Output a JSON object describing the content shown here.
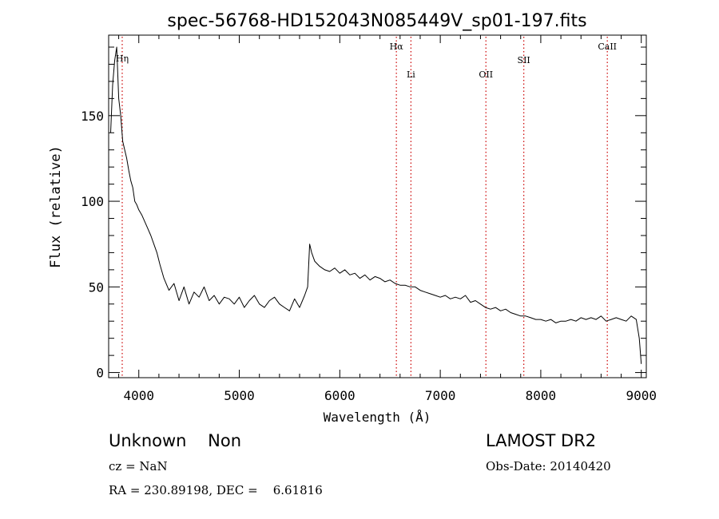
{
  "chart_data": {
    "type": "line",
    "title": "spec-56768-HD152043N085449V_sp01-197.fits",
    "xlabel": "Wavelength (Å)",
    "ylabel": "Flux (relative)",
    "xlim": [
      3700,
      9050
    ],
    "ylim": [
      -3,
      197
    ],
    "xticks": [
      4000,
      5000,
      6000,
      7000,
      8000,
      9000
    ],
    "yticks": [
      0,
      50,
      100,
      150
    ],
    "grid": false,
    "line_color": "#000000",
    "marker_color": "#cc0000",
    "lines": [
      {
        "label": "Hη",
        "wavelength": 3835
      },
      {
        "label": "Hα",
        "wavelength": 6563
      },
      {
        "label": "Li",
        "wavelength": 6708
      },
      {
        "label": "OII",
        "wavelength": 7454
      },
      {
        "label": "SII",
        "wavelength": 7831
      },
      {
        "label": "CaII",
        "wavelength": 8662
      }
    ],
    "series": [
      {
        "x": [
          3720,
          3740,
          3760,
          3780,
          3800,
          3820,
          3840,
          3860,
          3880,
          3900,
          3920,
          3940,
          3960,
          3980,
          4000,
          4030,
          4060,
          4090,
          4120,
          4150,
          4180,
          4210,
          4250,
          4300,
          4350,
          4400,
          4450,
          4500,
          4550,
          4600,
          4650,
          4700,
          4750,
          4800,
          4850,
          4900,
          4950,
          5000,
          5050,
          5100,
          5150,
          5200,
          5250,
          5300,
          5350,
          5400,
          5450,
          5500,
          5550,
          5600,
          5650,
          5680,
          5700,
          5720,
          5750,
          5800,
          5850,
          5900,
          5950,
          6000,
          6050,
          6100,
          6150,
          6200,
          6250,
          6300,
          6350,
          6400,
          6450,
          6500,
          6550,
          6600,
          6650,
          6700,
          6750,
          6800,
          6850,
          6900,
          6950,
          7000,
          7050,
          7100,
          7150,
          7200,
          7250,
          7300,
          7350,
          7400,
          7450,
          7500,
          7550,
          7600,
          7650,
          7700,
          7750,
          7800,
          7850,
          7900,
          7950,
          8000,
          8050,
          8100,
          8150,
          8200,
          8250,
          8300,
          8350,
          8400,
          8450,
          8500,
          8550,
          8600,
          8650,
          8700,
          8750,
          8800,
          8850,
          8900,
          8950,
          8980,
          9000
        ],
        "y": [
          140,
          168,
          182,
          190,
          160,
          150,
          135,
          130,
          125,
          118,
          112,
          108,
          100,
          98,
          95,
          92,
          88,
          84,
          80,
          75,
          70,
          63,
          55,
          48,
          52,
          42,
          50,
          40,
          47,
          44,
          50,
          42,
          45,
          40,
          44,
          43,
          40,
          44,
          38,
          42,
          45,
          40,
          38,
          42,
          44,
          40,
          38,
          36,
          43,
          38,
          45,
          50,
          75,
          70,
          65,
          62,
          60,
          59,
          61,
          58,
          60,
          57,
          58,
          55,
          57,
          54,
          56,
          55,
          53,
          54,
          52,
          51,
          51,
          50,
          50,
          48,
          47,
          46,
          45,
          44,
          45,
          43,
          44,
          43,
          45,
          41,
          42,
          40,
          38,
          37,
          38,
          36,
          37,
          35,
          34,
          33,
          33,
          32,
          31,
          31,
          30,
          31,
          29,
          30,
          30,
          31,
          30,
          32,
          31,
          32,
          31,
          33,
          30,
          31,
          32,
          31,
          30,
          33,
          31,
          20,
          5
        ]
      }
    ]
  },
  "info": {
    "class_line": "Unknown    Non",
    "survey": "LAMOST DR2",
    "cz": "cz = NaN",
    "obs_date": "Obs-Date: 20140420",
    "coords": "RA = 230.89198, DEC =    6.61816"
  }
}
